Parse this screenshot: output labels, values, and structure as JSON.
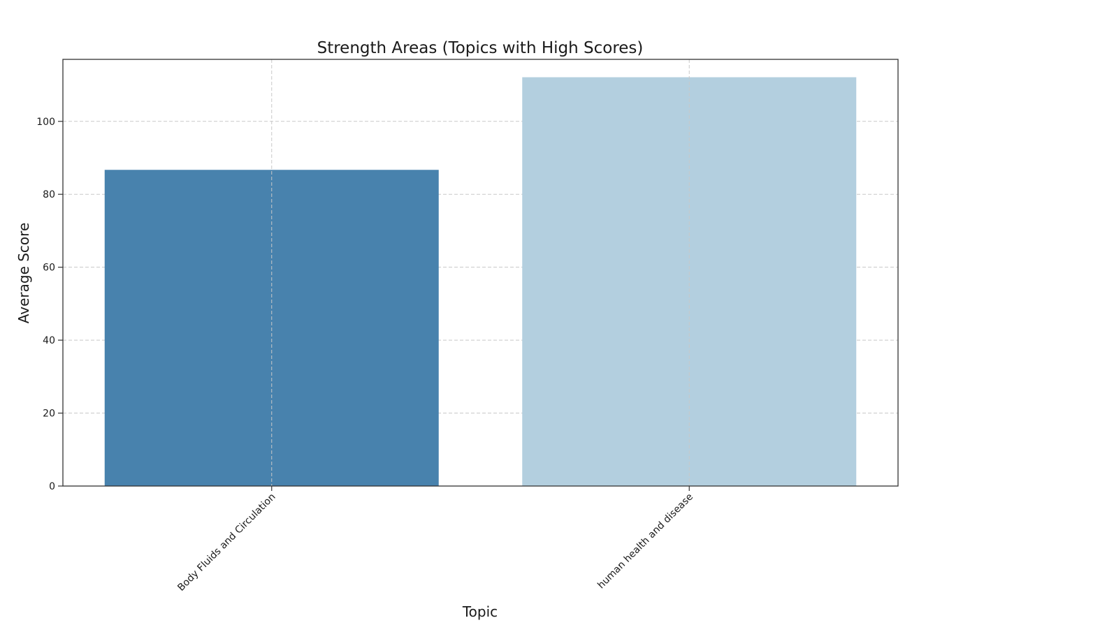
{
  "chart_data": {
    "type": "bar",
    "title": "Strength Areas (Topics with High Scores)",
    "xlabel": "Topic",
    "ylabel": "Average Score",
    "categories": [
      "Body Fluids and Circulation",
      "human health and disease"
    ],
    "values": [
      86.7,
      112.1
    ],
    "colors": [
      "#4882ad",
      "#b3cfdf"
    ],
    "ylim": [
      0,
      117
    ],
    "yticks": [
      0,
      20,
      40,
      60,
      80,
      100
    ],
    "grid": true
  }
}
